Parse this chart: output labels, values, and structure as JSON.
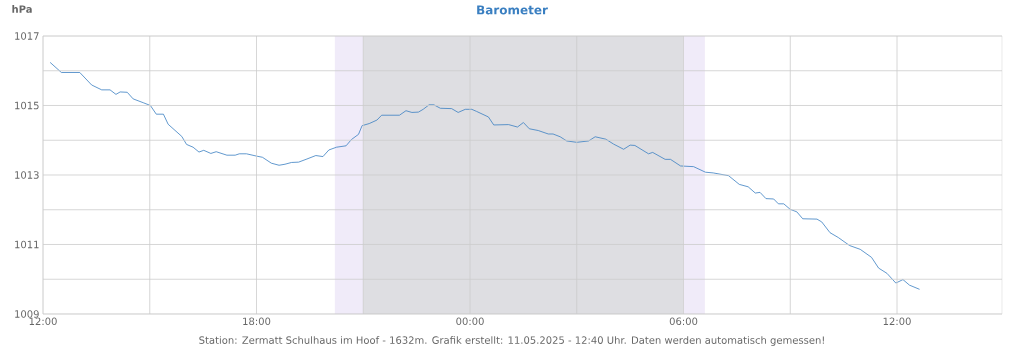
{
  "chart_data": {
    "type": "line",
    "title": "Barometer",
    "ylabel": "hPa",
    "annotations": [
      "Station: Zermatt Schulhaus im Hoof - 1632m. Grafik erstellt: 11.05.2025 - 12:40 Uhr. Daten werden automatisch gemessen!"
    ],
    "x": [
      "2025-05-10T12:12",
      "2025-05-10T12:31",
      "2025-05-10T13:02",
      "2025-05-10T13:22",
      "2025-05-10T13:39",
      "2025-05-10T13:53",
      "2025-05-10T14:03",
      "2025-05-10T14:10",
      "2025-05-10T14:22",
      "2025-05-10T14:32",
      "2025-05-10T14:49",
      "2025-05-10T15:01",
      "2025-05-10T15:11",
      "2025-05-10T15:23",
      "2025-05-10T15:31",
      "2025-05-10T15:54",
      "2025-05-10T16:02",
      "2025-05-10T16:13",
      "2025-05-10T16:23",
      "2025-05-10T16:31",
      "2025-05-10T16:43",
      "2025-05-10T16:52",
      "2025-05-10T17:10",
      "2025-05-10T17:24",
      "2025-05-10T17:31",
      "2025-05-10T17:43",
      "2025-05-10T18:01",
      "2025-05-10T18:10",
      "2025-05-10T18:25",
      "2025-05-10T18:38",
      "2025-05-10T18:48",
      "2025-05-10T18:59",
      "2025-05-10T19:11",
      "2025-05-10T19:25",
      "2025-05-10T19:40",
      "2025-05-10T19:52",
      "2025-05-10T20:02",
      "2025-05-10T20:15",
      "2025-05-10T20:31",
      "2025-05-10T20:40",
      "2025-05-10T20:52",
      "2025-05-10T20:58",
      "2025-05-10T21:10",
      "2025-05-10T21:23",
      "2025-05-10T21:31",
      "2025-05-10T22:01",
      "2025-05-10T22:12",
      "2025-05-10T22:22",
      "2025-05-10T22:33",
      "2025-05-10T22:41",
      "2025-05-10T22:51",
      "2025-05-10T22:59",
      "2025-05-10T23:10",
      "2025-05-10T23:29",
      "2025-05-10T23:40",
      "2025-05-10T23:52",
      "2025-05-11T00:03",
      "2025-05-11T00:11",
      "2025-05-11T00:31",
      "2025-05-11T00:40",
      "2025-05-11T01:05",
      "2025-05-11T01:20",
      "2025-05-11T01:30",
      "2025-05-11T01:40",
      "2025-05-11T01:55",
      "2025-05-11T02:12",
      "2025-05-11T02:20",
      "2025-05-11T02:32",
      "2025-05-11T02:43",
      "2025-05-11T03:00",
      "2025-05-11T03:20",
      "2025-05-11T03:31",
      "2025-05-11T03:49",
      "2025-05-11T04:02",
      "2025-05-11T04:19",
      "2025-05-11T04:30",
      "2025-05-11T04:38",
      "2025-05-11T05:01",
      "2025-05-11T05:08",
      "2025-05-11T05:29",
      "2025-05-11T05:38",
      "2025-05-11T05:55",
      "2025-05-11T06:17",
      "2025-05-11T06:37",
      "2025-05-11T06:50",
      "2025-05-11T07:16",
      "2025-05-11T07:34",
      "2025-05-11T07:49",
      "2025-05-11T08:01",
      "2025-05-11T08:09",
      "2025-05-11T08:19",
      "2025-05-11T08:32",
      "2025-05-11T08:40",
      "2025-05-11T08:49",
      "2025-05-11T09:00",
      "2025-05-11T09:11",
      "2025-05-11T09:21",
      "2025-05-11T09:45",
      "2025-05-11T09:53",
      "2025-05-11T10:07",
      "2025-05-11T10:21",
      "2025-05-11T10:40",
      "2025-05-11T10:58",
      "2025-05-11T11:17",
      "2025-05-11T11:29",
      "2025-05-11T11:43",
      "2025-05-11T11:58",
      "2025-05-11T12:10",
      "2025-05-11T12:21",
      "2025-05-11T12:38"
    ],
    "series": [
      {
        "color": "#3a7fc1",
        "values": [
          1016.24,
          1015.95,
          1015.95,
          1015.59,
          1015.45,
          1015.45,
          1015.32,
          1015.39,
          1015.38,
          1015.19,
          1015.08,
          1015.0,
          1014.75,
          1014.75,
          1014.46,
          1014.11,
          1013.88,
          1013.8,
          1013.66,
          1013.71,
          1013.62,
          1013.67,
          1013.57,
          1013.57,
          1013.61,
          1013.61,
          1013.54,
          1013.51,
          1013.34,
          1013.28,
          1013.31,
          1013.36,
          1013.37,
          1013.46,
          1013.56,
          1013.53,
          1013.72,
          1013.8,
          1013.84,
          1014.02,
          1014.17,
          1014.42,
          1014.48,
          1014.58,
          1014.72,
          1014.72,
          1014.85,
          1014.8,
          1014.81,
          1014.89,
          1015.02,
          1015.02,
          1014.92,
          1014.91,
          1014.8,
          1014.89,
          1014.89,
          1014.83,
          1014.67,
          1014.44,
          1014.45,
          1014.38,
          1014.51,
          1014.33,
          1014.28,
          1014.18,
          1014.18,
          1014.1,
          1013.98,
          1013.94,
          1013.98,
          1014.1,
          1014.03,
          1013.89,
          1013.74,
          1013.86,
          1013.85,
          1013.61,
          1013.65,
          1013.45,
          1013.45,
          1013.26,
          1013.24,
          1013.08,
          1013.06,
          1012.98,
          1012.73,
          1012.66,
          1012.48,
          1012.5,
          1012.32,
          1012.31,
          1012.17,
          1012.17,
          1012.01,
          1011.94,
          1011.74,
          1011.73,
          1011.65,
          1011.34,
          1011.2,
          1010.97,
          1010.86,
          1010.63,
          1010.32,
          1010.17,
          1009.89,
          1009.99,
          1009.83,
          1009.71
        ]
      }
    ],
    "xlim": [
      "2025-05-10T12:00",
      "2025-05-11T14:57"
    ],
    "ylim": [
      1009,
      1017
    ],
    "xticks": [
      {
        "value": "2025-05-10T12:00",
        "label": "12:00"
      },
      {
        "value": "2025-05-10T15:00",
        "label": null
      },
      {
        "value": "2025-05-10T18:00",
        "label": "18:00"
      },
      {
        "value": "2025-05-10T21:00",
        "label": null
      },
      {
        "value": "2025-05-11T00:00",
        "label": "00:00"
      },
      {
        "value": "2025-05-11T03:00",
        "label": null
      },
      {
        "value": "2025-05-11T06:00",
        "label": "06:00"
      },
      {
        "value": "2025-05-11T09:00",
        "label": null
      },
      {
        "value": "2025-05-11T12:00",
        "label": "12:00"
      }
    ],
    "yticks": [
      1009,
      {
        "value": 1010,
        "label": null
      },
      1011,
      {
        "value": 1012,
        "label": null
      },
      1013,
      {
        "value": 1014,
        "label": null
      },
      1015,
      {
        "value": 1016,
        "label": null
      },
      1017
    ],
    "bands": [
      {
        "axis": "x",
        "from": "2025-05-10T20:12",
        "to": "2025-05-10T21:00",
        "color": "#f0ebf9"
      },
      {
        "axis": "x",
        "from": "2025-05-10T21:00",
        "to": "2025-05-11T06:00",
        "color": "#dedee2"
      },
      {
        "axis": "x",
        "from": "2025-05-11T06:00",
        "to": "2025-05-11T06:36",
        "color": "#f0ebf9"
      }
    ],
    "grid": true,
    "line_style": "solid"
  }
}
